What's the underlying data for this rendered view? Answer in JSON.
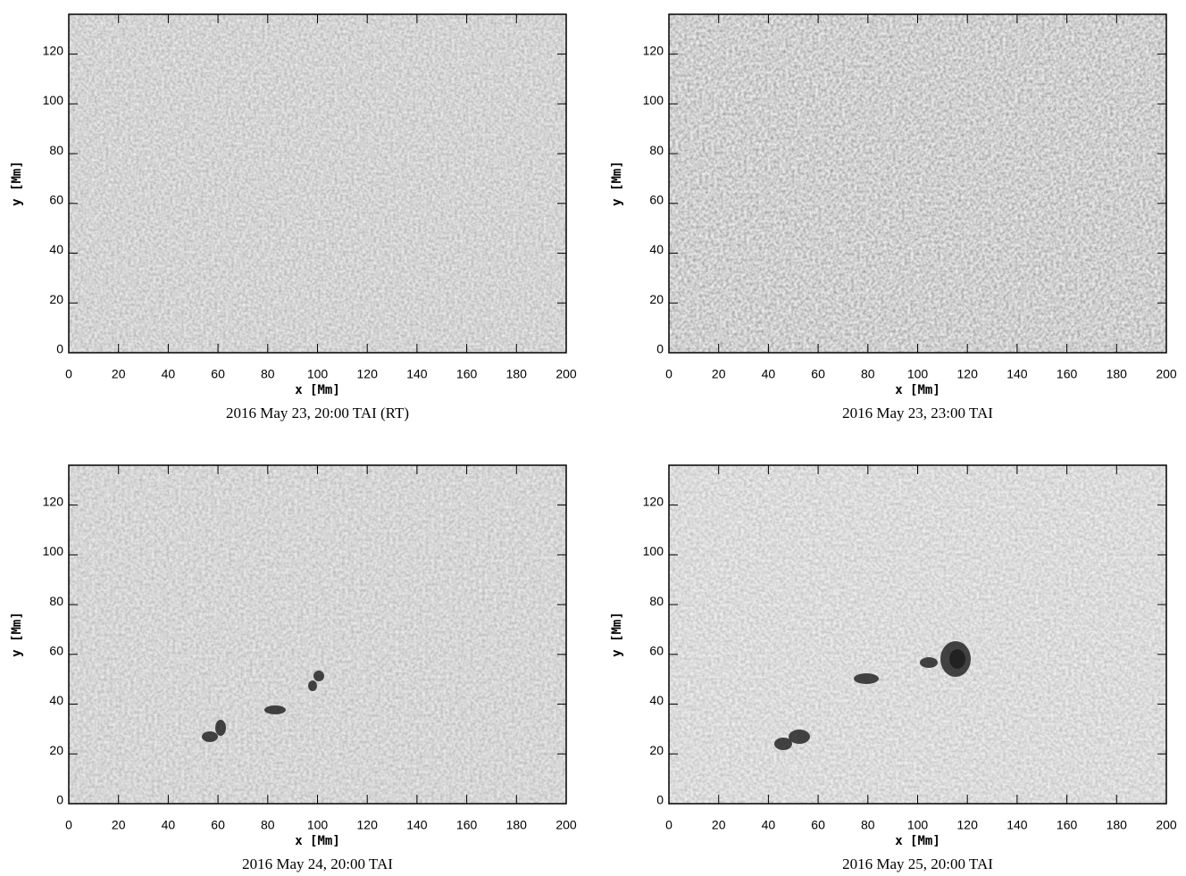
{
  "chart_data": [
    {
      "type": "image",
      "caption": "2016 May 23, 20:00 TAI (RT)",
      "xlabel": "x [Mm]",
      "ylabel": "y [Mm]",
      "xlim": [
        0,
        200
      ],
      "ylim": [
        0,
        136
      ],
      "xticks": [
        0,
        20,
        40,
        60,
        80,
        100,
        120,
        140,
        160,
        180,
        200
      ],
      "yticks": [
        0,
        20,
        40,
        60,
        80,
        100,
        120
      ]
    },
    {
      "type": "image",
      "caption": "2016 May 23, 23:00 TAI",
      "xlabel": "x [Mm]",
      "ylabel": "y [Mm]",
      "xlim": [
        0,
        200
      ],
      "ylim": [
        0,
        136
      ],
      "xticks": [
        0,
        20,
        40,
        60,
        80,
        100,
        120,
        140,
        160,
        180,
        200
      ],
      "yticks": [
        0,
        20,
        40,
        60,
        80,
        100,
        120
      ]
    },
    {
      "type": "image",
      "caption": "2016 May 24, 20:00 TAI",
      "xlabel": "x [Mm]",
      "ylabel": "y [Mm]",
      "xlim": [
        0,
        200
      ],
      "ylim": [
        0,
        136
      ],
      "xticks": [
        0,
        20,
        40,
        60,
        80,
        100,
        120,
        140,
        160,
        180,
        200
      ],
      "yticks": [
        0,
        20,
        40,
        60,
        80,
        100,
        120
      ]
    },
    {
      "type": "image",
      "caption": "2016 May 25, 20:00 TAI",
      "xlabel": "x [Mm]",
      "ylabel": "y [Mm]",
      "xlim": [
        0,
        200
      ],
      "ylim": [
        0,
        136
      ],
      "xticks": [
        0,
        20,
        40,
        60,
        80,
        100,
        120,
        140,
        160,
        180,
        200
      ],
      "yticks": [
        0,
        20,
        40,
        60,
        80,
        100,
        120
      ]
    }
  ]
}
